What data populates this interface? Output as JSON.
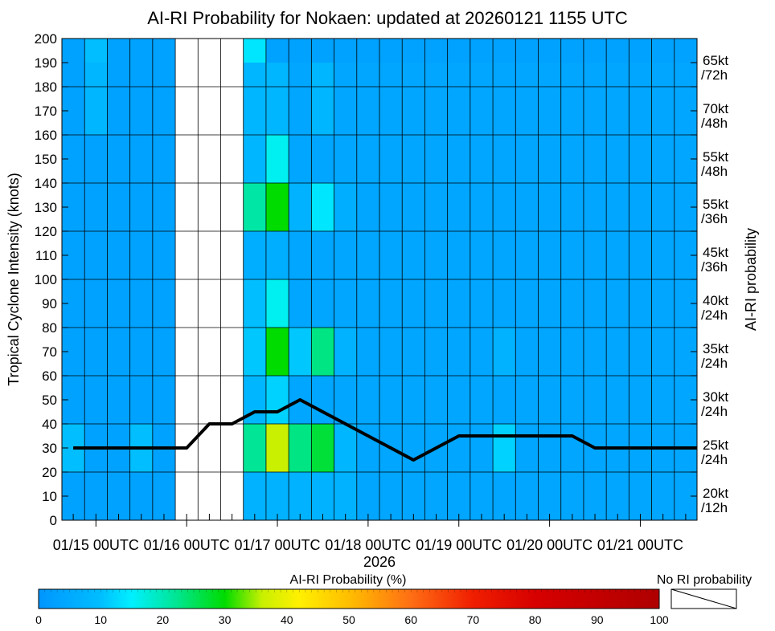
{
  "chart_data": {
    "type": "heatmap",
    "title": "AI-RI Probability for Nokaen: updated at 20260121 1155 UTC",
    "ylabel": "Tropical Cyclone Intensity (knots)",
    "xlabel": "2026",
    "right_label": "AI-RI probability",
    "ylim": [
      0,
      200
    ],
    "y_ticks": [
      "0",
      "10",
      "20",
      "30",
      "40",
      "50",
      "60",
      "70",
      "80",
      "90",
      "100",
      "110",
      "120",
      "130",
      "140",
      "150",
      "160",
      "170",
      "180",
      "190",
      "200"
    ],
    "x_tick_labels": [
      "01/15 00UTC",
      "01/16 00UTC",
      "01/17 00UTC",
      "01/18 00UTC",
      "01/19 00UTC",
      "01/20 00UTC",
      "01/21 00UTC"
    ],
    "x_times": [
      "01/14 18UTC",
      "01/15 00UTC",
      "01/15 06UTC",
      "01/15 12UTC",
      "01/15 18UTC",
      "01/16 00UTC",
      "01/16 06UTC",
      "01/16 12UTC",
      "01/16 18UTC",
      "01/17 00UTC",
      "01/17 06UTC",
      "01/17 12UTC",
      "01/17 18UTC",
      "01/18 00UTC",
      "01/18 06UTC",
      "01/18 12UTC",
      "01/18 18UTC",
      "01/19 00UTC",
      "01/19 06UTC",
      "01/19 12UTC",
      "01/19 18UTC",
      "01/20 00UTC",
      "01/20 06UTC",
      "01/20 12UTC",
      "01/20 18UTC",
      "01/21 00UTC",
      "01/21 06UTC",
      "01/21 12UTC"
    ],
    "thresholds": [
      {
        "kt": "20kt",
        "h": "/12h"
      },
      {
        "kt": "25kt",
        "h": "/24h"
      },
      {
        "kt": "30kt",
        "h": "/24h"
      },
      {
        "kt": "35kt",
        "h": "/24h"
      },
      {
        "kt": "40kt",
        "h": "/24h"
      },
      {
        "kt": "45kt",
        "h": "/36h"
      },
      {
        "kt": "55kt",
        "h": "/36h"
      },
      {
        "kt": "55kt",
        "h": "/48h"
      },
      {
        "kt": "70kt",
        "h": "/48h"
      },
      {
        "kt": "65kt",
        "h": "/72h"
      }
    ],
    "probability_rows_bottom_to_top": [
      [
        3,
        3,
        3,
        3,
        3,
        null,
        null,
        null,
        7,
        7,
        7,
        7,
        7,
        4,
        4,
        4,
        4,
        4,
        4,
        4,
        4,
        4,
        4,
        4,
        4,
        4,
        4,
        4
      ],
      [
        10,
        3,
        3,
        10,
        3,
        null,
        null,
        null,
        22,
        36,
        23,
        27,
        8,
        4,
        4,
        4,
        4,
        4,
        4,
        12,
        4,
        4,
        4,
        4,
        4,
        4,
        4,
        4
      ],
      [
        3,
        3,
        3,
        3,
        3,
        null,
        null,
        null,
        8,
        12,
        4,
        4,
        4,
        4,
        4,
        4,
        4,
        4,
        4,
        4,
        4,
        4,
        4,
        4,
        4,
        4,
        4,
        4
      ],
      [
        3,
        3,
        3,
        3,
        3,
        null,
        null,
        null,
        11,
        30,
        11,
        23,
        7,
        4,
        4,
        4,
        4,
        4,
        4,
        7,
        4,
        4,
        4,
        4,
        4,
        4,
        4,
        4
      ],
      [
        3,
        3,
        3,
        3,
        3,
        null,
        null,
        null,
        10,
        16,
        4,
        4,
        4,
        4,
        4,
        4,
        4,
        4,
        4,
        4,
        4,
        4,
        4,
        4,
        4,
        4,
        4,
        4
      ],
      [
        3,
        3,
        3,
        3,
        3,
        null,
        null,
        null,
        6,
        6,
        4,
        4,
        4,
        4,
        4,
        4,
        4,
        4,
        4,
        4,
        4,
        4,
        4,
        4,
        4,
        4,
        4,
        4
      ],
      [
        3,
        3,
        3,
        3,
        3,
        null,
        null,
        null,
        21,
        30,
        7,
        14,
        6,
        4,
        4,
        4,
        4,
        4,
        4,
        4,
        4,
        4,
        4,
        4,
        4,
        4,
        4,
        4
      ],
      [
        3,
        3,
        3,
        3,
        3,
        null,
        null,
        null,
        8,
        16,
        4,
        4,
        4,
        4,
        4,
        4,
        4,
        4,
        4,
        4,
        4,
        4,
        4,
        4,
        4,
        4,
        4,
        4
      ],
      [
        3,
        8,
        3,
        3,
        3,
        null,
        null,
        null,
        8,
        8,
        4,
        8,
        4,
        4,
        4,
        4,
        4,
        4,
        4,
        4,
        4,
        4,
        4,
        4,
        4,
        4,
        4,
        4
      ],
      [
        3,
        8,
        3,
        3,
        3,
        null,
        null,
        null,
        8,
        8,
        4,
        8,
        4,
        4,
        4,
        4,
        4,
        4,
        4,
        4,
        4,
        4,
        4,
        4,
        4,
        4,
        4,
        4
      ],
      [
        3,
        10,
        3,
        3,
        3,
        null,
        null,
        null,
        14,
        3,
        3,
        3,
        3,
        3,
        3,
        3,
        3,
        3,
        3,
        3,
        3,
        3,
        3,
        3,
        3,
        3,
        3,
        3
      ]
    ],
    "intensity_series": {
      "x": [
        "01/14 18UTC",
        "01/15 00UTC",
        "01/15 06UTC",
        "01/15 12UTC",
        "01/15 18UTC",
        "01/16 00UTC",
        "01/16 06UTC",
        "01/16 12UTC",
        "01/16 18UTC",
        "01/17 00UTC",
        "01/17 06UTC",
        "01/17 12UTC",
        "01/17 18UTC",
        "01/18 00UTC",
        "01/18 06UTC",
        "01/18 12UTC",
        "01/18 18UTC",
        "01/19 00UTC",
        "01/19 06UTC",
        "01/19 12UTC",
        "01/19 18UTC",
        "01/20 00UTC",
        "01/20 06UTC",
        "01/20 12UTC",
        "01/20 18UTC",
        "01/21 00UTC",
        "01/21 06UTC",
        "01/21 12UTC"
      ],
      "y": [
        30,
        30,
        30,
        30,
        30,
        30,
        40,
        40,
        45,
        45,
        50,
        45,
        40,
        35,
        30,
        25,
        30,
        35,
        35,
        35,
        35,
        35,
        35,
        30,
        30,
        30,
        30,
        30
      ]
    },
    "colorbar": {
      "label": "AI-RI Probability (%)",
      "ticks": [
        "0",
        "10",
        "20",
        "30",
        "40",
        "50",
        "60",
        "70",
        "80",
        "90",
        "100"
      ],
      "no_ri_label": "No RI probability"
    },
    "grid": true
  }
}
